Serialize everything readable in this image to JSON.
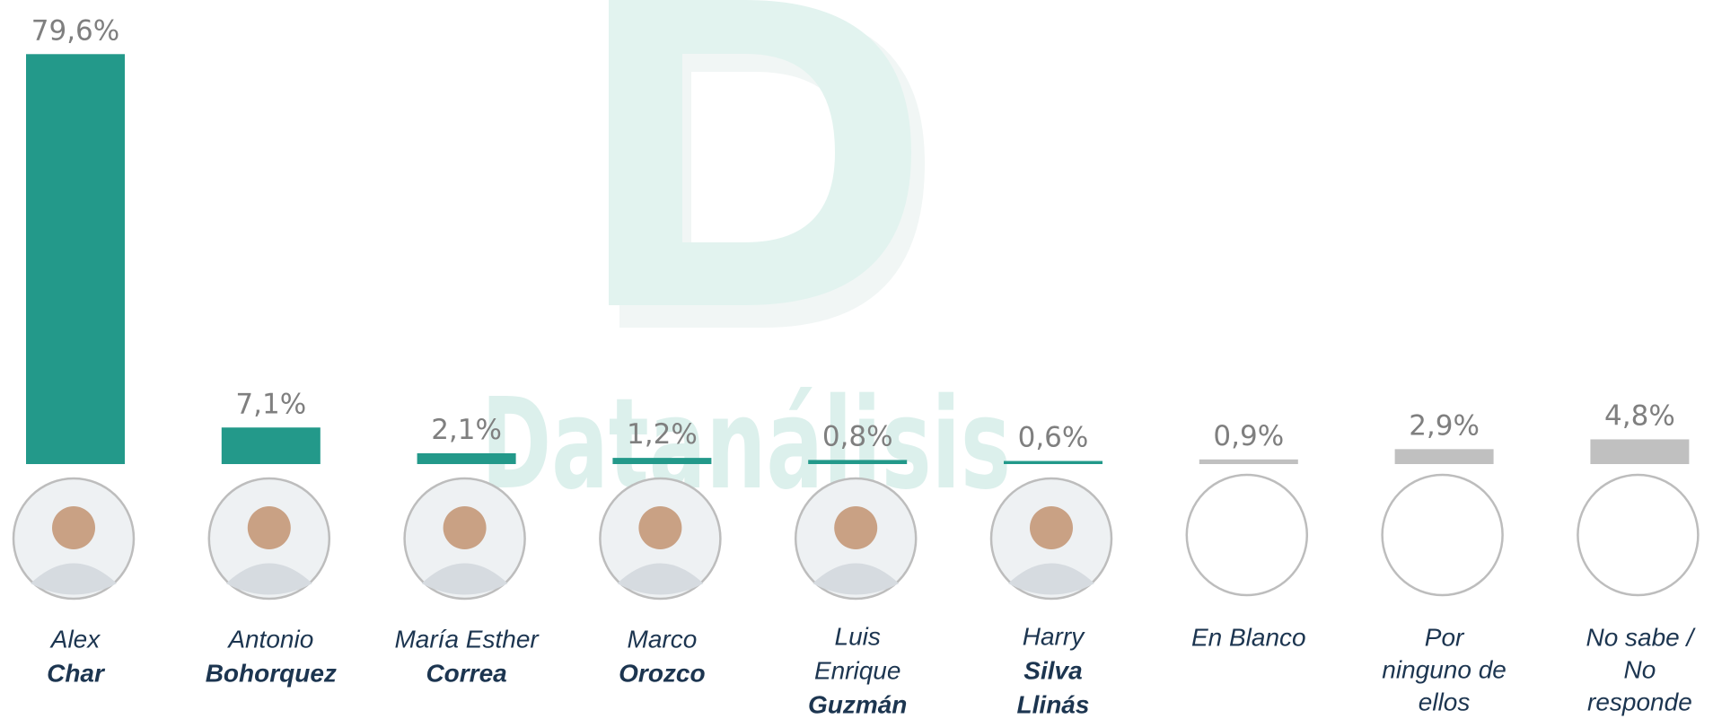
{
  "chart_data": {
    "type": "bar",
    "watermark": "Datanálisis",
    "categories": [
      {
        "given": [
          "Alex"
        ],
        "surname": [
          "Char"
        ]
      },
      {
        "given": [
          "Antonio"
        ],
        "surname": [
          "Bohorquez"
        ]
      },
      {
        "given": [
          "María Esther"
        ],
        "surname": [
          "Correa"
        ]
      },
      {
        "given": [
          "Marco"
        ],
        "surname": [
          "Orozco"
        ]
      },
      {
        "given": [
          "Luis",
          "Enrique"
        ],
        "surname": [
          "Guzmán"
        ]
      },
      {
        "given": [
          "Harry"
        ],
        "surname": [
          "Silva",
          "Llinás"
        ]
      },
      {
        "given": [
          "En Blanco"
        ],
        "surname": []
      },
      {
        "given": [
          "Por",
          "ninguno de",
          "ellos"
        ],
        "surname": []
      },
      {
        "given": [
          "No sabe /",
          "No",
          "responde"
        ],
        "surname": []
      }
    ],
    "values": [
      79.6,
      7.1,
      2.1,
      1.2,
      0.8,
      0.6,
      0.9,
      2.9,
      4.8
    ],
    "value_labels": [
      "79,6%",
      "7,1%",
      "2,1%",
      "1,2%",
      "0,8%",
      "0,6%",
      "0,9%",
      "2,9%",
      "4,8%"
    ],
    "colors": [
      "#23998a",
      "#23998a",
      "#23998a",
      "#23998a",
      "#23998a",
      "#23998a",
      "#c0c0c0",
      "#c0c0c0",
      "#c0c0c0"
    ],
    "ylim": [
      0,
      80
    ]
  }
}
